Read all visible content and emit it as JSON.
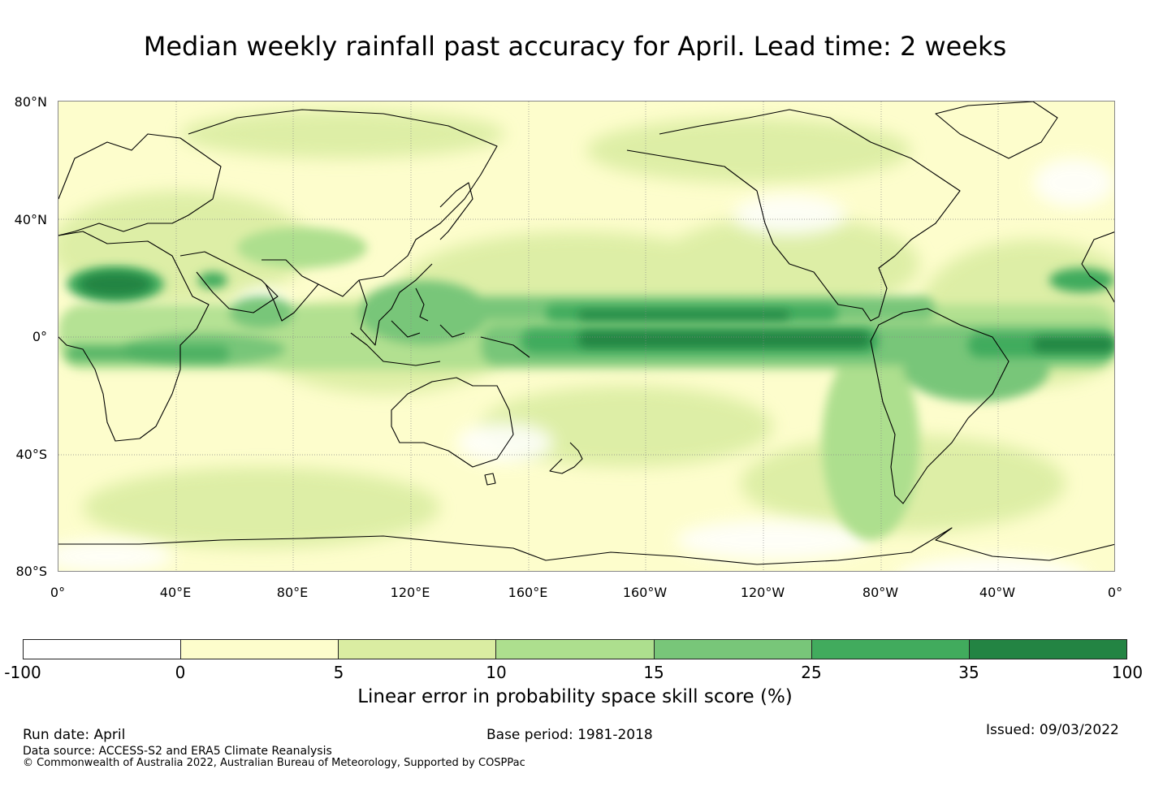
{
  "title": "Median weekly rainfall past accuracy for April. Lead time: 2 weeks",
  "map": {
    "lat_labels": [
      "80°N",
      "40°N",
      "0°",
      "40°S",
      "80°S"
    ],
    "lon_labels": [
      "0°",
      "40°E",
      "80°E",
      "120°E",
      "160°E",
      "160°W",
      "120°W",
      "80°W",
      "40°W",
      "0°"
    ],
    "projection": "equirectangular, 0° centred on Pacific",
    "grid": true
  },
  "colorbar": {
    "ticks": [
      "-100",
      "0",
      "5",
      "10",
      "15",
      "25",
      "35",
      "100"
    ],
    "colors": [
      "#ffffff",
      "#fdfdcc",
      "#daeda2",
      "#addf8e",
      "#78c679",
      "#41ab5d",
      "#238443"
    ],
    "label": "Linear error in probability space skill score (%)"
  },
  "footer": {
    "run_date": "Run date: April",
    "base_period": "Base period: 1981-2018",
    "issued": "Issued: 09/03/2022",
    "data_source": "Data source: ACCESS-S2 and ERA5 Climate Reanalysis",
    "copyright": "© Commonwealth of Australia 2022, Australian Bureau of Meteorology, Supported by COSPPac"
  }
}
